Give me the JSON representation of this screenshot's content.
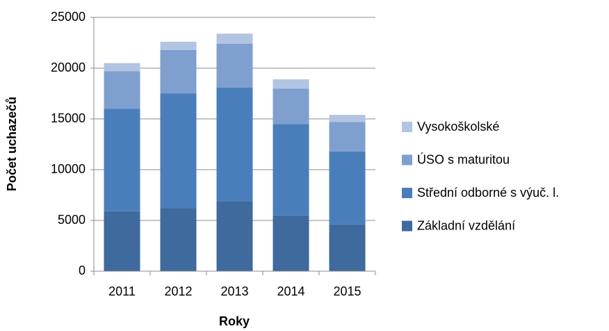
{
  "chart_data": {
    "type": "stacked_bar",
    "x_label": "Roky",
    "y_label": "Počet uchazečů",
    "categories": [
      "2011",
      "2012",
      "2013",
      "2014",
      "2015"
    ],
    "series": [
      {
        "name": "Základní vzdělání",
        "color": "#3e6a9e",
        "values": [
          5900,
          6200,
          6900,
          5500,
          4600
        ]
      },
      {
        "name": "Střední odborné s výuč. l.",
        "color": "#4a7ebb",
        "values": [
          10100,
          11300,
          11200,
          9000,
          7200
        ]
      },
      {
        "name": "ÚSO s maturitou",
        "color": "#7f9fcf",
        "values": [
          3700,
          4300,
          4300,
          3500,
          2900
        ]
      },
      {
        "name": "Vysokoškolské",
        "color": "#b3c4e2",
        "values": [
          800,
          800,
          1000,
          900,
          700
        ]
      }
    ],
    "ylim": [
      0,
      25000
    ],
    "yticks": [
      0,
      5000,
      10000,
      15000,
      20000,
      25000
    ],
    "grid": true
  }
}
